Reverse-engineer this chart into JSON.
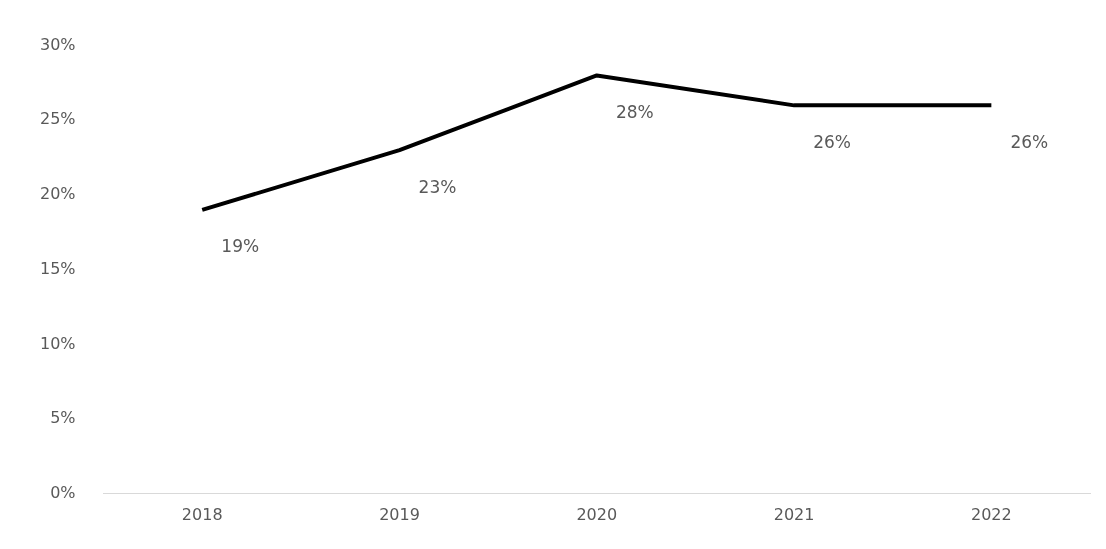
{
  "chart_data": {
    "type": "line",
    "categories": [
      "2018",
      "2019",
      "2020",
      "2021",
      "2022"
    ],
    "series": [
      {
        "color": "#000000",
        "values": [
          19,
          23,
          28,
          26,
          26
        ],
        "value_labels": [
          "19%",
          "23%",
          "28%",
          "26%",
          "26%"
        ]
      }
    ],
    "ylim": [
      0,
      30
    ],
    "yticks": [
      {
        "value": 0,
        "label": "0%"
      },
      {
        "value": 5,
        "label": "5%"
      },
      {
        "value": 10,
        "label": "10%"
      },
      {
        "value": 15,
        "label": "15%"
      },
      {
        "value": 20,
        "label": "20%"
      },
      {
        "value": 25,
        "label": "25%"
      },
      {
        "value": 30,
        "label": "30%"
      }
    ],
    "grid": false,
    "legend": false,
    "marker": "none",
    "line_style": "solid"
  }
}
